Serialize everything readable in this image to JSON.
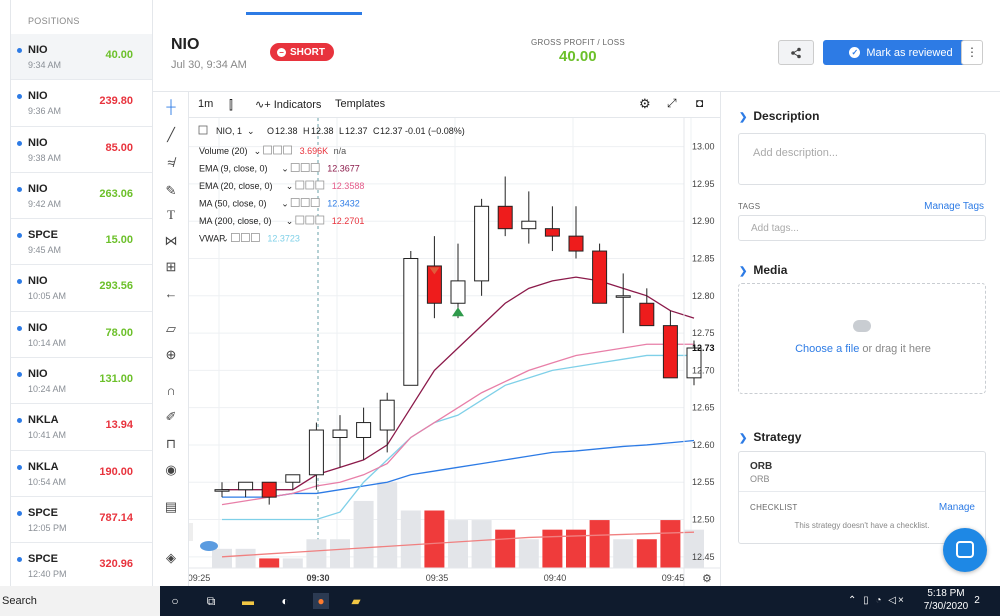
{
  "positions": {
    "header": "POSITIONS",
    "items": [
      {
        "symbol": "NIO",
        "time": "9:34 AM",
        "pl": "40.00",
        "color": "green"
      },
      {
        "symbol": "NIO",
        "time": "9:36 AM",
        "pl": "239.80",
        "color": "red"
      },
      {
        "symbol": "NIO",
        "time": "9:38 AM",
        "pl": "85.00",
        "color": "red"
      },
      {
        "symbol": "NIO",
        "time": "9:42 AM",
        "pl": "263.06",
        "color": "green"
      },
      {
        "symbol": "SPCE",
        "time": "9:45 AM",
        "pl": "15.00",
        "color": "green"
      },
      {
        "symbol": "NIO",
        "time": "10:05 AM",
        "pl": "293.56",
        "color": "green"
      },
      {
        "symbol": "NIO",
        "time": "10:14 AM",
        "pl": "78.00",
        "color": "green"
      },
      {
        "symbol": "NIO",
        "time": "10:24 AM",
        "pl": "131.00",
        "color": "green"
      },
      {
        "symbol": "NKLA",
        "time": "10:41 AM",
        "pl": "13.94",
        "color": "red"
      },
      {
        "symbol": "NKLA",
        "time": "10:54 AM",
        "pl": "190.00",
        "color": "red"
      },
      {
        "symbol": "SPCE",
        "time": "12:05 PM",
        "pl": "787.14",
        "color": "red"
      },
      {
        "symbol": "SPCE",
        "time": "12:40 PM",
        "pl": "320.96",
        "color": "red"
      }
    ]
  },
  "header": {
    "title": "NIO",
    "date": "Jul 30, 9:34 AM",
    "badge": "SHORT",
    "gpl_label": "GROSS PROFIT / LOSS",
    "gpl_value": "40.00",
    "review_label": "Mark as reviewed",
    "more": "⋮"
  },
  "chart_top": {
    "interval": "1m",
    "indicators": "Indicators",
    "templates": "Templates"
  },
  "legend": {
    "symbol": "NIO, 1",
    "ohlc": {
      "o": "12.38",
      "h": "12.38",
      "l": "12.37",
      "c": "12.37",
      "chg": "-0.01 (−0.08%)"
    },
    "rows": [
      {
        "label": "Volume (20)",
        "value": "3.696K",
        "extra": "n/a",
        "color": "#e8333d"
      },
      {
        "label": "EMA (9, close, 0)",
        "value": "12.3677",
        "color": "#8b1a4a"
      },
      {
        "label": "EMA (20, close, 0)",
        "value": "12.3588",
        "color": "#e55c8a"
      },
      {
        "label": "MA (50, close, 0)",
        "value": "12.3432",
        "color": "#2d7be5"
      },
      {
        "label": "MA (200, close, 0)",
        "value": "12.2701",
        "color": "#e8333d"
      },
      {
        "label": "VWAP",
        "value": "12.3723",
        "color": "#7fd0e8"
      }
    ]
  },
  "chart_data": {
    "type": "candlestick",
    "xlabels": [
      "09:25",
      "09:30",
      "09:35",
      "09:40",
      "09:45"
    ],
    "y_ticks": [
      "13.00",
      "12.95",
      "12.90",
      "12.85",
      "12.80",
      "12.75",
      "12.70",
      "12.65",
      "12.60",
      "12.55",
      "12.50",
      "12.45"
    ],
    "last_price": "12.73",
    "candles": [
      {
        "o": 12.54,
        "h": 12.55,
        "l": 12.53,
        "c": 12.54
      },
      {
        "o": 12.54,
        "h": 12.55,
        "l": 12.53,
        "c": 12.55
      },
      {
        "o": 12.55,
        "h": 12.55,
        "l": 12.52,
        "c": 12.53
      },
      {
        "o": 12.55,
        "h": 12.56,
        "l": 12.54,
        "c": 12.56
      },
      {
        "o": 12.56,
        "h": 12.63,
        "l": 12.54,
        "c": 12.62
      },
      {
        "o": 12.61,
        "h": 12.64,
        "l": 12.57,
        "c": 12.62
      },
      {
        "o": 12.61,
        "h": 12.65,
        "l": 12.58,
        "c": 12.63
      },
      {
        "o": 12.62,
        "h": 12.67,
        "l": 12.59,
        "c": 12.66
      },
      {
        "o": 12.68,
        "h": 12.86,
        "l": 12.68,
        "c": 12.85
      },
      {
        "o": 12.84,
        "h": 12.88,
        "l": 12.77,
        "c": 12.79
      },
      {
        "o": 12.79,
        "h": 12.87,
        "l": 12.77,
        "c": 12.82
      },
      {
        "o": 12.82,
        "h": 12.93,
        "l": 12.8,
        "c": 12.92
      },
      {
        "o": 12.92,
        "h": 12.96,
        "l": 12.88,
        "c": 12.89
      },
      {
        "o": 12.89,
        "h": 12.94,
        "l": 12.87,
        "c": 12.9
      },
      {
        "o": 12.89,
        "h": 12.92,
        "l": 12.86,
        "c": 12.88
      },
      {
        "o": 12.88,
        "h": 12.92,
        "l": 12.85,
        "c": 12.86
      },
      {
        "o": 12.86,
        "h": 12.87,
        "l": 12.79,
        "c": 12.79
      },
      {
        "o": 12.8,
        "h": 12.83,
        "l": 12.75,
        "c": 12.8
      },
      {
        "o": 12.79,
        "h": 12.81,
        "l": 12.76,
        "c": 12.76
      },
      {
        "o": 12.76,
        "h": 12.78,
        "l": 12.69,
        "c": 12.69
      },
      {
        "o": 12.69,
        "h": 12.74,
        "l": 12.68,
        "c": 12.73
      }
    ],
    "volume": [
      2,
      2,
      1,
      1,
      3,
      3,
      7,
      9,
      6,
      6,
      5,
      5,
      4,
      3,
      4,
      4,
      5,
      3,
      3,
      5,
      4
    ],
    "ema9": [
      12.54,
      12.54,
      12.54,
      12.54,
      12.56,
      12.57,
      12.58,
      12.6,
      12.65,
      12.7,
      12.73,
      12.76,
      12.79,
      12.81,
      12.82,
      12.825,
      12.82,
      12.81,
      12.8,
      12.78,
      12.77
    ],
    "ema20": [
      12.52,
      12.525,
      12.53,
      12.535,
      12.545,
      12.55,
      12.56,
      12.575,
      12.61,
      12.63,
      12.65,
      12.67,
      12.685,
      12.7,
      12.71,
      12.72,
      12.725,
      12.73,
      12.735,
      12.735,
      12.735
    ],
    "ma50": [
      12.53,
      12.53,
      12.53,
      12.535,
      12.535,
      12.54,
      12.545,
      12.55,
      12.56,
      12.565,
      12.57,
      12.575,
      12.58,
      12.585,
      12.59,
      12.592,
      12.595,
      12.598,
      12.6,
      12.603,
      12.606
    ],
    "ma200": [
      12.45,
      12.452,
      12.454,
      12.456,
      12.458,
      12.46,
      12.462,
      12.464,
      12.466,
      12.468,
      12.47,
      12.472,
      12.474,
      12.476,
      12.477,
      12.478,
      12.479,
      12.48,
      12.481,
      12.482,
      12.483
    ],
    "vwap": [
      12.5,
      12.5,
      12.5,
      12.5,
      12.5,
      12.51,
      12.55,
      12.58,
      12.61,
      12.63,
      12.64,
      12.66,
      12.68,
      12.69,
      12.7,
      12.705,
      12.71,
      12.715,
      12.72,
      12.72,
      12.72
    ]
  },
  "right": {
    "desc_title": "Description",
    "desc_placeholder": "Add description...",
    "tags_label": "TAGS",
    "manage_tags": "Manage Tags",
    "tags_placeholder": "Add tags...",
    "media_title": "Media",
    "choose_file": "Choose a file",
    "drag_text": "or drag it here",
    "strategy_title": "Strategy",
    "strategy_name": "ORB",
    "strategy_sub": "ORB",
    "checklist_label": "CHECKLIST",
    "checklist_manage": "Manage",
    "checklist_empty": "This strategy doesn't have a checklist."
  },
  "taskbar": {
    "search": "Search",
    "time": "5:18 PM",
    "date": "7/30/2020",
    "notif": "2"
  }
}
